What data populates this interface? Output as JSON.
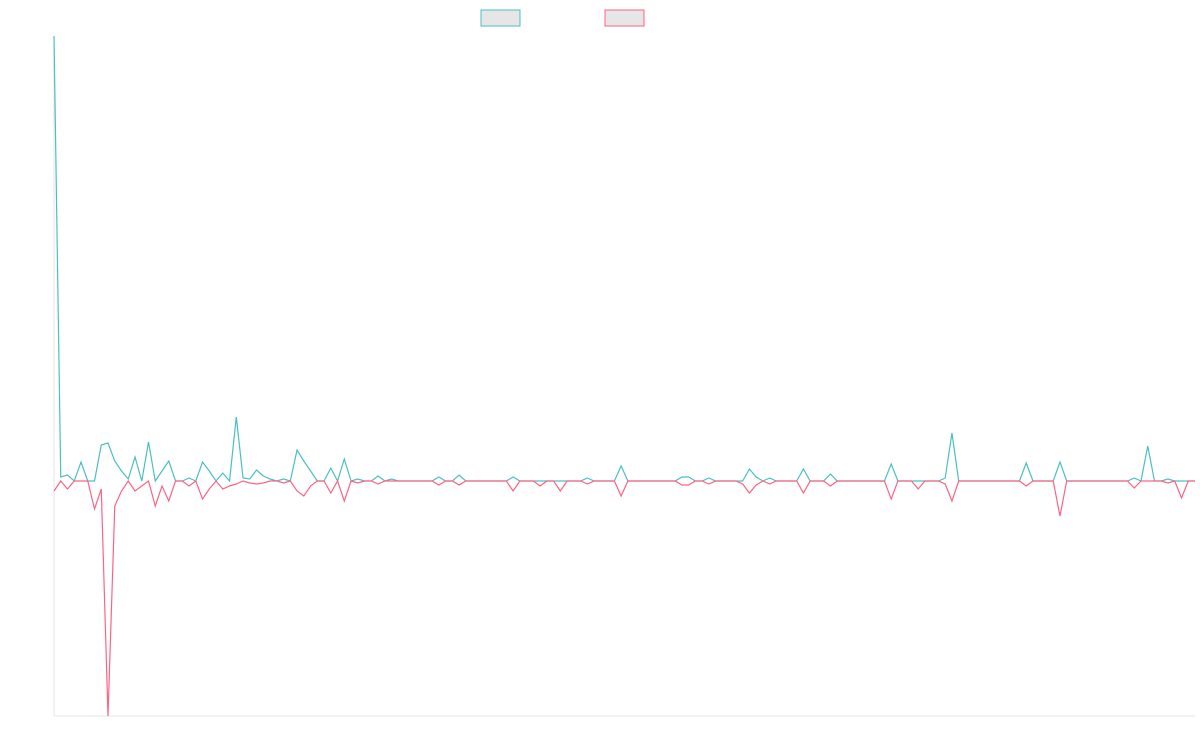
{
  "chart_data": {
    "type": "line",
    "ylim": [
      -235,
      445
    ],
    "series": [
      {
        "color": "#4bc0c0",
        "values": [
          445,
          4,
          6,
          0,
          19,
          0,
          0,
          36,
          38,
          20,
          10,
          2,
          24,
          0,
          39,
          0,
          10,
          20,
          0,
          0,
          3,
          0,
          19,
          10,
          0,
          8,
          0,
          64,
          3,
          2,
          11,
          5,
          2,
          0,
          2,
          0,
          31,
          20,
          10,
          0,
          0,
          13,
          0,
          22,
          0,
          2,
          0,
          0,
          5,
          0,
          2,
          0,
          0,
          0,
          0,
          0,
          0,
          4,
          0,
          0,
          6,
          0,
          0,
          0,
          0,
          0,
          0,
          0,
          4,
          0,
          0,
          0,
          0,
          0,
          0,
          0,
          0,
          0,
          0,
          3,
          0,
          0,
          0,
          0,
          15,
          0,
          0,
          0,
          0,
          0,
          0,
          0,
          0,
          4,
          4,
          0,
          0,
          3,
          0,
          0,
          0,
          0,
          0,
          12,
          4,
          0,
          3,
          0,
          0,
          0,
          0,
          12,
          0,
          0,
          0,
          7,
          0,
          0,
          0,
          0,
          0,
          0,
          0,
          0,
          17,
          0,
          0,
          0,
          0,
          0,
          0,
          0,
          3,
          48,
          0,
          0,
          0,
          0,
          0,
          0,
          0,
          0,
          0,
          0,
          18,
          0,
          0,
          0,
          0,
          19,
          0,
          0,
          0,
          0,
          0,
          0,
          0,
          0,
          0,
          0,
          3,
          0,
          35,
          0,
          0,
          2,
          0,
          0,
          0,
          0
        ]
      },
      {
        "color": "#ff6384",
        "values": [
          -10,
          0,
          -8,
          0,
          0,
          0,
          -28,
          -8,
          -235,
          -25,
          -10,
          0,
          -10,
          -5,
          0,
          -25,
          -5,
          -20,
          0,
          0,
          -5,
          0,
          -18,
          -8,
          0,
          -8,
          -5,
          -3,
          0,
          -2,
          -3,
          -2,
          0,
          0,
          -2,
          0,
          -10,
          -15,
          -5,
          0,
          0,
          -12,
          0,
          -20,
          0,
          -2,
          0,
          0,
          -3,
          0,
          0,
          0,
          0,
          0,
          0,
          0,
          0,
          -4,
          0,
          0,
          -4,
          0,
          0,
          0,
          0,
          0,
          0,
          0,
          -10,
          0,
          0,
          0,
          -5,
          0,
          0,
          -10,
          0,
          0,
          0,
          -3,
          0,
          0,
          0,
          0,
          -15,
          0,
          0,
          0,
          0,
          0,
          0,
          0,
          0,
          -4,
          -4,
          0,
          0,
          -3,
          0,
          0,
          0,
          0,
          -3,
          -12,
          -4,
          0,
          -3,
          0,
          0,
          0,
          0,
          -12,
          0,
          0,
          0,
          -5,
          0,
          0,
          0,
          0,
          0,
          0,
          0,
          0,
          -18,
          0,
          0,
          0,
          -8,
          0,
          0,
          0,
          -3,
          -20,
          0,
          0,
          0,
          0,
          0,
          0,
          0,
          0,
          0,
          0,
          -5,
          0,
          0,
          0,
          0,
          -35,
          0,
          0,
          0,
          0,
          0,
          0,
          0,
          0,
          0,
          0,
          -7,
          0,
          0,
          0,
          0,
          -2,
          0,
          -17,
          0,
          0
        ]
      }
    ]
  }
}
